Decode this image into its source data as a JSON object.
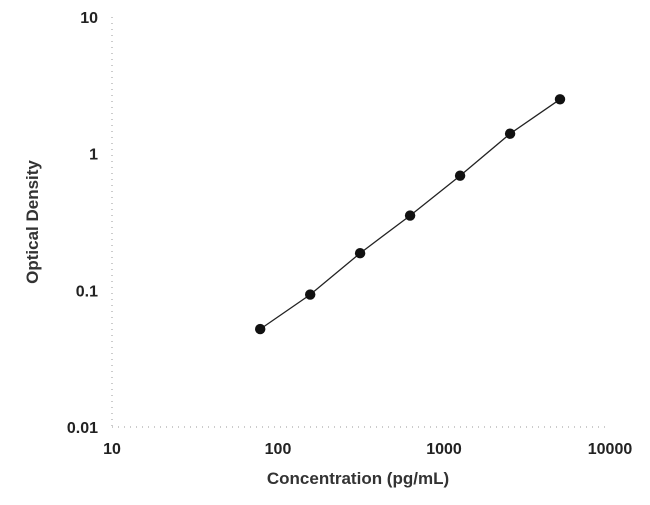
{
  "chart_data": {
    "type": "scatter",
    "title": "",
    "xlabel": "Concentration (pg/mL)",
    "ylabel": "Optical Density",
    "x_scale": "log",
    "y_scale": "log",
    "xlim": [
      10,
      10000
    ],
    "ylim": [
      0.01,
      10
    ],
    "x_ticks": [
      "10",
      "100",
      "1000",
      "10000"
    ],
    "y_ticks": [
      "0.01",
      "0.1",
      "1",
      "10"
    ],
    "grid": false,
    "points": [
      {
        "x": 78.1,
        "y": 0.052
      },
      {
        "x": 156.25,
        "y": 0.093
      },
      {
        "x": 312.5,
        "y": 0.187
      },
      {
        "x": 625,
        "y": 0.352
      },
      {
        "x": 1250,
        "y": 0.69
      },
      {
        "x": 2500,
        "y": 1.4
      },
      {
        "x": 5000,
        "y": 2.5
      }
    ],
    "fit_line": true,
    "colors": {
      "marker": "#111111",
      "line": "#222222",
      "axis": "#999999"
    }
  }
}
